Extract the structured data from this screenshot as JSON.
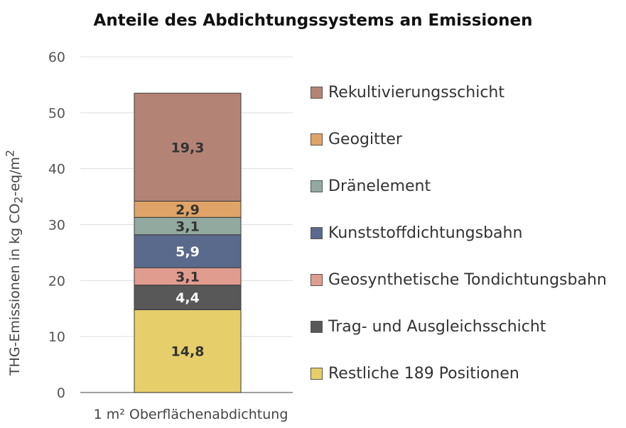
{
  "chart_data": {
    "type": "bar",
    "stacked": true,
    "title": "Anteile des Abdichtungssystems an Emissionen",
    "xlabel": "",
    "ylabel": {
      "prefix": "THG-Emissionen in kg CO",
      "sub": "2",
      "suffix": "-eq/m",
      "sup": "2"
    },
    "categories": [
      "1 m² Oberflächenabdichtung"
    ],
    "ylim": [
      0,
      60
    ],
    "yticks": [
      "0",
      "10",
      "20",
      "30",
      "40",
      "50",
      "60"
    ],
    "grid": true,
    "legend_position": "right",
    "series": [
      {
        "name": "Restliche 189 Positionen",
        "values": [
          14.8
        ],
        "label": "14,8",
        "color": "#E6CE6B",
        "label_color": "#333333"
      },
      {
        "name": "Trag- und Ausgleichsschicht",
        "values": [
          4.4
        ],
        "label": "4,4",
        "color": "#585858",
        "label_color": "#ffffff"
      },
      {
        "name": "Geosynthetische Tondichtungsbahn",
        "values": [
          3.1
        ],
        "label": "3,1",
        "color": "#E19C90",
        "label_color": "#333333"
      },
      {
        "name": "Kunststoffdichtungsbahn",
        "values": [
          5.9
        ],
        "label": "5,9",
        "color": "#5A6A8C",
        "label_color": "#ffffff"
      },
      {
        "name": "Dränelement",
        "values": [
          3.1
        ],
        "label": "3,1",
        "color": "#92A9A0",
        "label_color": "#333333"
      },
      {
        "name": "Geogitter",
        "values": [
          2.9
        ],
        "label": "2,9",
        "color": "#E0A468",
        "label_color": "#333333"
      },
      {
        "name": "Rekultivierungsschicht",
        "values": [
          19.3
        ],
        "label": "19,3",
        "color": "#B38476",
        "label_color": "#333333"
      }
    ]
  }
}
